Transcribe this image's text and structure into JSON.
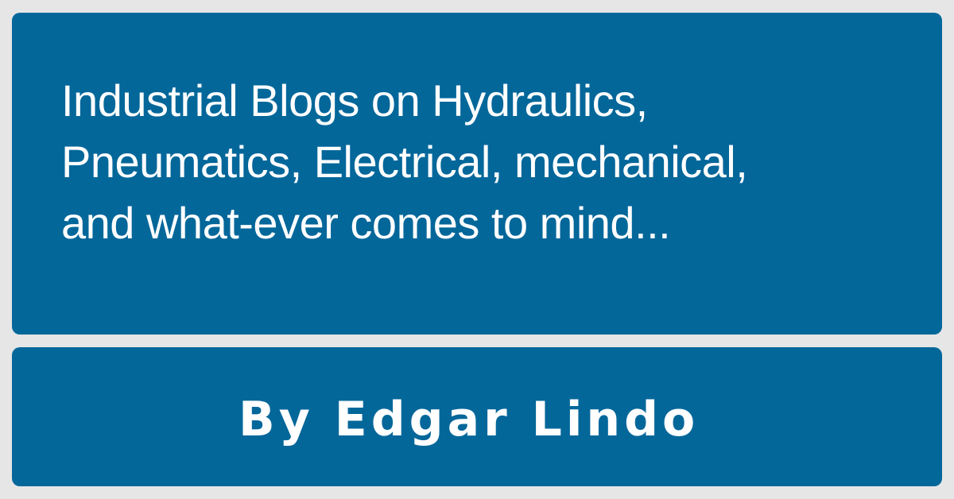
{
  "headline": {
    "lines": [
      "Industrial Blogs on Hydraulics,",
      "Pneumatics, Electrical, mechanical,",
      "and what-ever comes to mind..."
    ]
  },
  "byline": {
    "text": "By Edgar Lindo"
  },
  "colors": {
    "panel": "#04679a",
    "background": "#e6e6e6",
    "text": "#ffffff"
  }
}
